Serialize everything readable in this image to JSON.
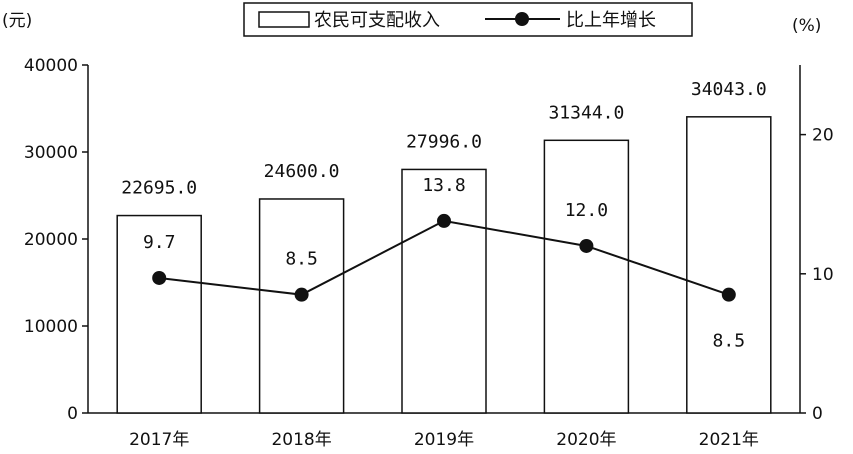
{
  "chart_data": {
    "type": "bar",
    "categories": [
      "2017年",
      "2018年",
      "2019年",
      "2020年",
      "2021年"
    ],
    "series": [
      {
        "name": "农民可支配收入",
        "type": "bar",
        "axis": "left",
        "values": [
          22695.0,
          24600.0,
          27996.0,
          31344.0,
          34043.0
        ],
        "labels": [
          "22695.0",
          "24600.0",
          "27996.0",
          "31344.0",
          "34043.0"
        ]
      },
      {
        "name": "比上年增长",
        "type": "line",
        "axis": "right",
        "values": [
          9.7,
          8.5,
          13.8,
          12.0,
          8.5
        ],
        "labels": [
          "9.7",
          "8.5",
          "13.8",
          "12.0",
          "8.5"
        ]
      }
    ],
    "left_axis": {
      "unit": "(元)",
      "min": 0,
      "max": 40000,
      "ticks": [
        "0",
        "10000",
        "20000",
        "30000",
        "40000"
      ]
    },
    "right_axis": {
      "unit": "(%)",
      "min": 0,
      "max": 25,
      "ticks": [
        "0",
        "10",
        "20"
      ]
    },
    "legend_position": "top",
    "grid": false
  },
  "colors": {
    "bar_fill": "#ffffff",
    "stroke": "#111111",
    "marker": "#111111"
  }
}
